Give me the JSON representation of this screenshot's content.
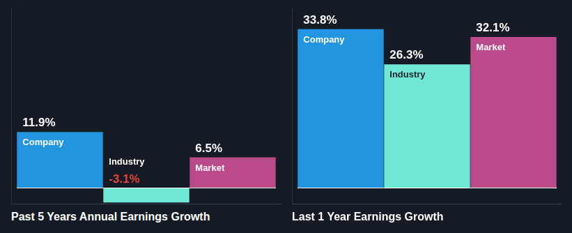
{
  "chart_data": [
    {
      "type": "bar",
      "title": "Past 5 Years Annual Earnings Growth",
      "categories": [
        "Company",
        "Industry",
        "Market"
      ],
      "values": [
        11.9,
        -3.1,
        6.5
      ],
      "value_labels": [
        "11.9%",
        "-3.1%",
        "6.5%"
      ],
      "colors": [
        "#2394df",
        "#71e7d6",
        "#bb4a8a"
      ],
      "ylim": [
        -3.5,
        38.5
      ],
      "grid": false,
      "data_labels": true,
      "tick_labels": false
    },
    {
      "type": "bar",
      "title": "Last 1 Year Earnings Growth",
      "categories": [
        "Company",
        "Industry",
        "Market"
      ],
      "values": [
        33.8,
        26.3,
        32.1
      ],
      "value_labels": [
        "33.8%",
        "26.3%",
        "32.1%"
      ],
      "colors": [
        "#2394df",
        "#71e7d6",
        "#bb4a8a"
      ],
      "ylim": [
        -3.5,
        38.5
      ],
      "grid": false,
      "data_labels": true,
      "tick_labels": false
    }
  ]
}
